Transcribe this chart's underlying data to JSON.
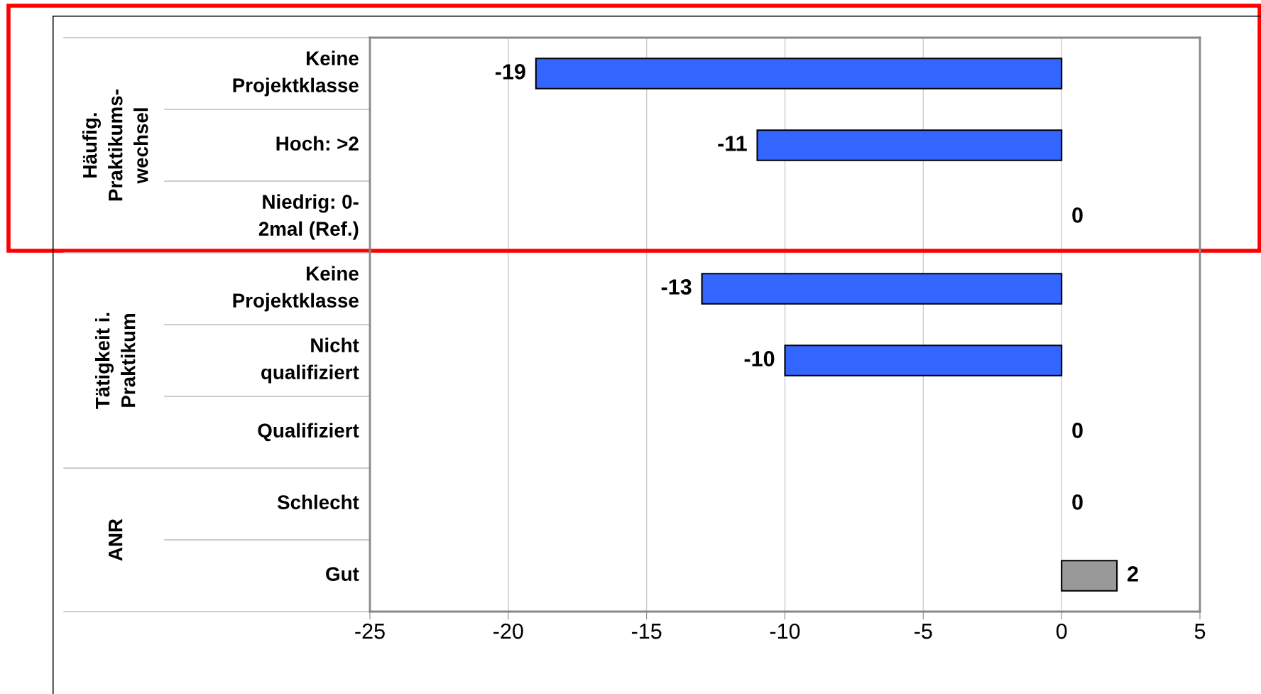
{
  "chart_data": {
    "type": "bar",
    "orientation": "horizontal",
    "categories": [
      "Keine\nProjektklasse",
      "Hoch: >2",
      "Niedrig: 0-\n2mal (Ref.)",
      "Keine\nProjektklasse",
      "Nicht\nqualifiziert",
      "Qualifiziert",
      "Schlecht",
      "Gut"
    ],
    "values": [
      -19,
      -11,
      0,
      -13,
      -10,
      0,
      0,
      2
    ],
    "colors": [
      "#3366ff",
      "#3366ff",
      "#3366ff",
      "#3366ff",
      "#3366ff",
      "#3366ff",
      "#3366ff",
      "#999999"
    ],
    "xlim": [
      -25,
      5
    ],
    "xticks": [
      -25,
      -20,
      -15,
      -10,
      -5,
      0,
      5
    ],
    "grid": "x",
    "data_labels": true,
    "annotations": [
      "Häufig.\nPraktikums-\nwechsel",
      "Tätigkeit i.\nPraktikum",
      "ANR"
    ]
  }
}
